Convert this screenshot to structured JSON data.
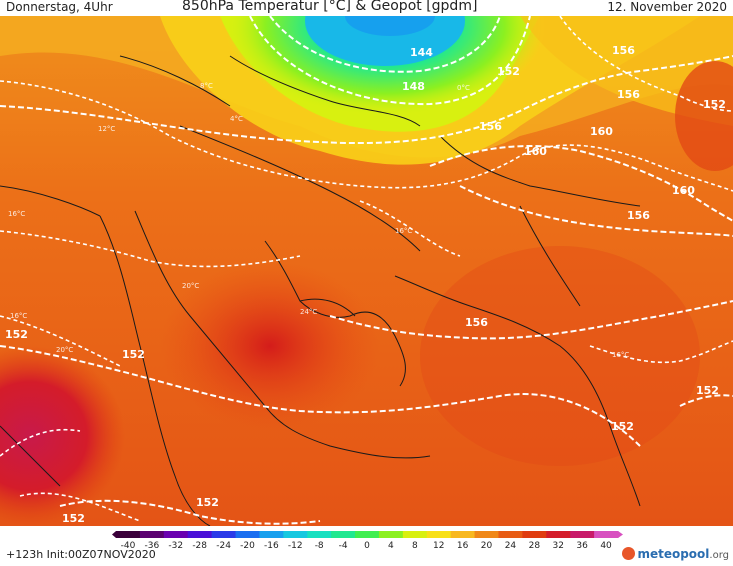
{
  "header": {
    "left": "Donnerstag, 4Uhr",
    "title": "850hPa Temperatur [°C] & Geopot [gpdm]",
    "right": "12. November 2020"
  },
  "footer": {
    "run_info": "+123h  Init:00Z07NOV2020",
    "logo_name": "meteopool",
    "logo_tld": ".org"
  },
  "colorbar": {
    "ticks": [
      "-40",
      "-36",
      "-32",
      "-28",
      "-24",
      "-20",
      "-16",
      "-12",
      "-8",
      "-4",
      "0",
      "4",
      "8",
      "12",
      "16",
      "20",
      "24",
      "28",
      "32",
      "36",
      "40"
    ],
    "colors": [
      "#3a003a",
      "#5a0070",
      "#6a00b0",
      "#4a10d8",
      "#2a3ae8",
      "#1a6ef0",
      "#18a0ee",
      "#16c8e0",
      "#18e0c0",
      "#20e890",
      "#40ee50",
      "#8cf020",
      "#d8f010",
      "#f8e018",
      "#f8b820",
      "#f08818",
      "#e85c14",
      "#e03c10",
      "#d41c2a",
      "#c81a6a",
      "#d850c0"
    ]
  },
  "map": {
    "isohypse_labels": [
      {
        "text": "144"
      },
      {
        "text": "148"
      },
      {
        "text": "152"
      },
      {
        "text": "156"
      },
      {
        "text": "156"
      },
      {
        "text": "156"
      },
      {
        "text": "160"
      },
      {
        "text": "160"
      },
      {
        "text": "160"
      },
      {
        "text": "156"
      },
      {
        "text": "156"
      },
      {
        "text": "152"
      },
      {
        "text": "152"
      },
      {
        "text": "152"
      },
      {
        "text": "152"
      },
      {
        "text": "152"
      },
      {
        "text": "152"
      }
    ],
    "isotherm_labels": [
      "0°C",
      "4°C",
      "8°C",
      "12°C",
      "16°C",
      "20°C",
      "24°C",
      "16°C",
      "20°C",
      "16°C",
      "16°C"
    ]
  }
}
